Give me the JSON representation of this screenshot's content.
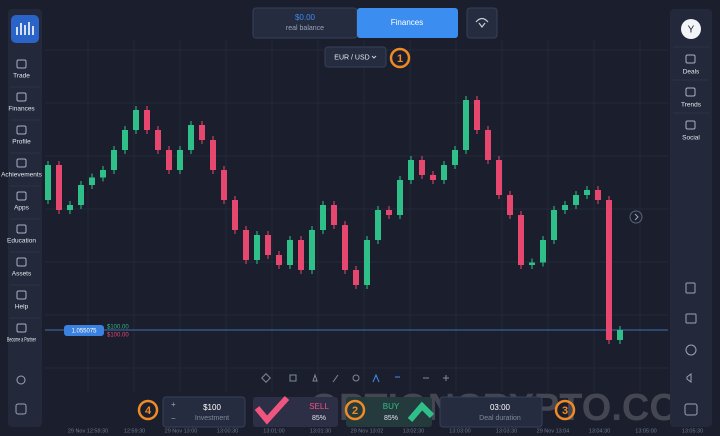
{
  "header": {
    "balance": "$0.00",
    "balance_label": "real balance",
    "finances": "Finances",
    "pair": "EUR / USD"
  },
  "avatar": "Y",
  "left_menu": [
    "Trade",
    "Finances",
    "Profile",
    "Achievements",
    "Apps",
    "Education",
    "Assets",
    "Help",
    "Become a Partner"
  ],
  "right_menu": [
    "Deals",
    "Trends",
    "Social"
  ],
  "chart": {
    "type": "candlestick",
    "ylim": [
      1.05488,
      1.05624
    ],
    "candles": [
      [
        1.05559,
        1.05573
      ],
      [
        1.05573,
        1.05555
      ],
      [
        1.05555,
        1.05557
      ],
      [
        1.05557,
        1.05565
      ],
      [
        1.05565,
        1.05568
      ],
      [
        1.05568,
        1.05571
      ],
      [
        1.05571,
        1.05579
      ],
      [
        1.05579,
        1.05587
      ],
      [
        1.05587,
        1.05595
      ],
      [
        1.05595,
        1.05587
      ],
      [
        1.05587,
        1.05579
      ],
      [
        1.05579,
        1.05571
      ],
      [
        1.05571,
        1.05579
      ],
      [
        1.05579,
        1.05589
      ],
      [
        1.05589,
        1.05583
      ],
      [
        1.05583,
        1.05571
      ],
      [
        1.05571,
        1.05559
      ],
      [
        1.05559,
        1.05547
      ],
      [
        1.05547,
        1.05535
      ],
      [
        1.05535,
        1.05545
      ],
      [
        1.05545,
        1.05537
      ],
      [
        1.05537,
        1.05533
      ],
      [
        1.05533,
        1.05543
      ],
      [
        1.05543,
        1.05531
      ],
      [
        1.05531,
        1.05547
      ],
      [
        1.05547,
        1.05557
      ],
      [
        1.05557,
        1.05549
      ],
      [
        1.05549,
        1.05531
      ],
      [
        1.05531,
        1.05525
      ],
      [
        1.05525,
        1.05543
      ],
      [
        1.05543,
        1.05555
      ],
      [
        1.05555,
        1.05553
      ],
      [
        1.05553,
        1.05567
      ],
      [
        1.05567,
        1.05575
      ],
      [
        1.05575,
        1.05569
      ],
      [
        1.05569,
        1.05567
      ],
      [
        1.05567,
        1.05573
      ],
      [
        1.05573,
        1.05579
      ],
      [
        1.05579,
        1.05599
      ],
      [
        1.05599,
        1.05587
      ],
      [
        1.05587,
        1.05575
      ],
      [
        1.05575,
        1.05561
      ],
      [
        1.05561,
        1.05553
      ],
      [
        1.05553,
        1.05533
      ],
      [
        1.05533,
        1.05534
      ],
      [
        1.05534,
        1.05543
      ],
      [
        1.05543,
        1.05555
      ],
      [
        1.05555,
        1.05557
      ],
      [
        1.05557,
        1.05561
      ],
      [
        1.05561,
        1.05563
      ],
      [
        1.05563,
        1.05559
      ],
      [
        1.05559,
        1.05503
      ],
      [
        1.05503,
        1.05507
      ]
    ],
    "current_price": "1.055075",
    "price_tags": [
      "$100.00",
      "$100.00"
    ],
    "time_labels": [
      "29 Nov 12:58:30",
      "12:59:30",
      "29 Nov 13:00",
      "13:00:30",
      "13:01:00",
      "13:01:30",
      "29 Nov 13:02",
      "13:02:30",
      "13:03:00",
      "13:03:30",
      "29 Nov 13:04",
      "13:04:30",
      "13:05:00",
      "13:05:30"
    ]
  },
  "deal": {
    "investment": "$100",
    "investment_label": "Investment",
    "sell": "SELL",
    "sell_payout": "85%",
    "buy": "BUY",
    "buy_payout": "85%",
    "duration": "03:00",
    "duration_label": "Deal duration"
  },
  "annotations": [
    "1",
    "2",
    "3",
    "4"
  ],
  "watermark": "OPTIONCRYPTO.COM"
}
